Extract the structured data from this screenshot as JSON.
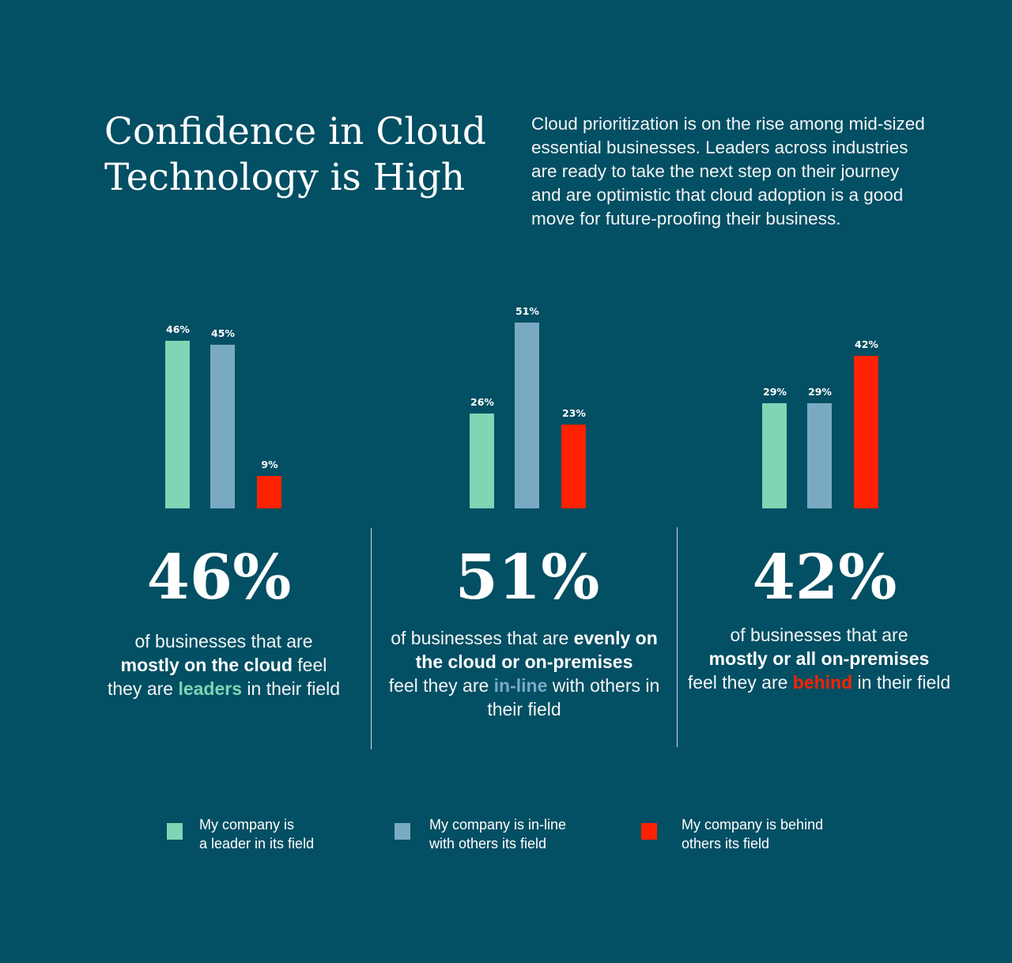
{
  "header": {
    "title_line1": "Confidence in Cloud",
    "title_line2": "Technology is High",
    "intro": "Cloud prioritization is on the rise among mid-sized essential businesses. Leaders across industries are ready to take the next step on their journey and are optimistic that cloud adoption is a good move for future-proofing their business."
  },
  "colors": {
    "background": "#034f63",
    "leader": "#7fd5b4",
    "inline": "#7aaac2",
    "behind": "#ff2200"
  },
  "chart_data": [
    {
      "type": "bar",
      "title": "Mostly on the cloud",
      "categories": [
        "Leader",
        "In-line",
        "Behind"
      ],
      "values": [
        46,
        45,
        9
      ],
      "labels": [
        "46%",
        "45%",
        "9%"
      ],
      "ylim": [
        0,
        55
      ]
    },
    {
      "type": "bar",
      "title": "Evenly on the cloud or on-premises",
      "categories": [
        "Leader",
        "In-line",
        "Behind"
      ],
      "values": [
        26,
        51,
        23
      ],
      "labels": [
        "26%",
        "51%",
        "23%"
      ],
      "ylim": [
        0,
        55
      ]
    },
    {
      "type": "bar",
      "title": "Mostly or all on-premises",
      "categories": [
        "Leader",
        "In-line",
        "Behind"
      ],
      "values": [
        29,
        29,
        42
      ],
      "labels": [
        "29%",
        "29%",
        "42%"
      ],
      "ylim": [
        0,
        55
      ]
    }
  ],
  "stats": [
    {
      "big": "46%",
      "pre1": "of businesses that are",
      "b1": "mostly on the cloud",
      "mid": " feel",
      "pre2": "they are ",
      "hl": "leaders",
      "post": " in their field"
    },
    {
      "big": "51%",
      "pre1": "of businesses that are ",
      "b1": "evenly on the cloud or on-premises",
      "pre2": "feel they are ",
      "hl": "in-line",
      "post": " with others in their field"
    },
    {
      "big": "42%",
      "pre1": "of businesses that are",
      "b1": "mostly or all on-premises",
      "pre2": "feel they are ",
      "hl": "behind",
      "post": " in their field"
    }
  ],
  "legend": [
    {
      "line1": "My company is",
      "line2": "a leader in its field"
    },
    {
      "line1": "My company is in-line",
      "line2": "with others its field"
    },
    {
      "line1": "My company is behind",
      "line2": "others its field"
    }
  ]
}
